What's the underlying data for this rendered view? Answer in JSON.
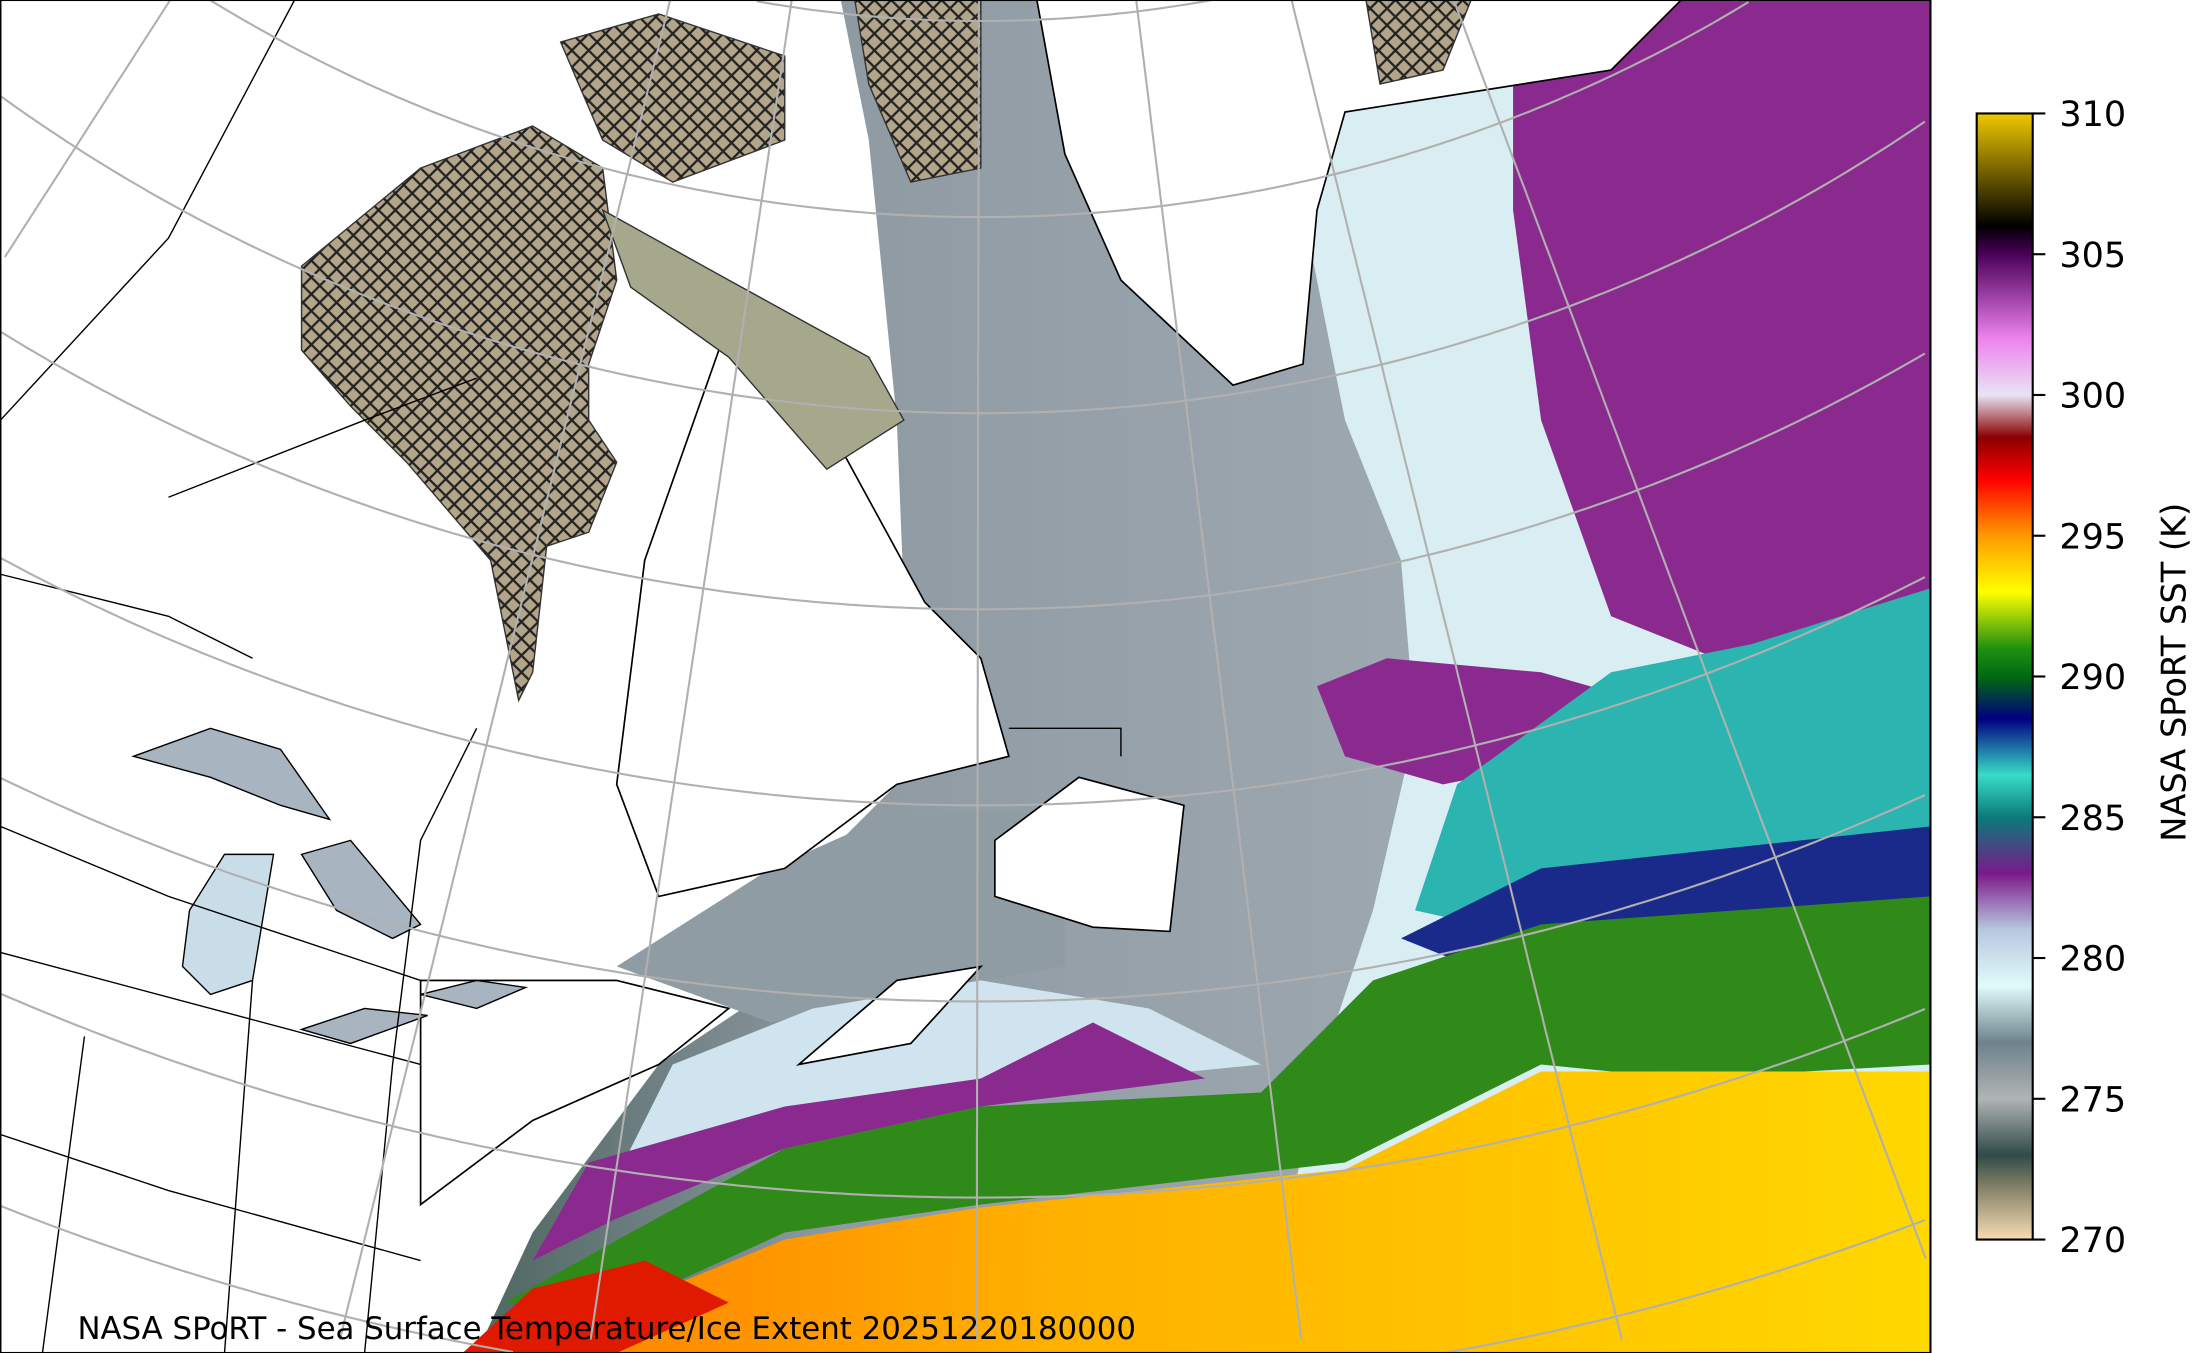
{
  "footer_title": "NASA SPoRT - Sea Surface Temperature/Ice Extent 20251220180000",
  "colorbar": {
    "label": "NASA SPoRT SST (K)",
    "min": 270,
    "max": 310,
    "ticks": [
      "270",
      "275",
      "280",
      "285",
      "290",
      "295",
      "300",
      "305",
      "310"
    ],
    "stops": [
      {
        "value": 270,
        "color": "#f7dcb4"
      },
      {
        "value": 272,
        "color": "#7a7a62"
      },
      {
        "value": 273,
        "color": "#2f4a48"
      },
      {
        "value": 275,
        "color": "#b0b4b4"
      },
      {
        "value": 277,
        "color": "#6e828c"
      },
      {
        "value": 279,
        "color": "#e0fafa"
      },
      {
        "value": 281,
        "color": "#b8c8e0"
      },
      {
        "value": 283,
        "color": "#7a1a8a"
      },
      {
        "value": 285,
        "color": "#0a7a7a"
      },
      {
        "value": 286.5,
        "color": "#38dcc8"
      },
      {
        "value": 288.5,
        "color": "#000080"
      },
      {
        "value": 290,
        "color": "#006a10"
      },
      {
        "value": 291,
        "color": "#209010"
      },
      {
        "value": 293,
        "color": "#ffff00"
      },
      {
        "value": 295,
        "color": "#ff9a00"
      },
      {
        "value": 297,
        "color": "#ff0000"
      },
      {
        "value": 298.5,
        "color": "#8a0000"
      },
      {
        "value": 300,
        "color": "#e8e4f4"
      },
      {
        "value": 302,
        "color": "#ee82ee"
      },
      {
        "value": 305,
        "color": "#4a005a"
      },
      {
        "value": 306,
        "color": "#000000"
      },
      {
        "value": 310,
        "color": "#f0c800"
      }
    ]
  },
  "legend": {
    "ice_hatch": "ice-extent-hatching"
  },
  "colors": {
    "land": "#ffffff",
    "ice": "#b3a58a",
    "graticule": "#b0b0b0",
    "coast": "#000000"
  }
}
